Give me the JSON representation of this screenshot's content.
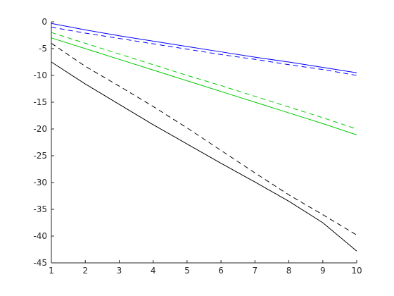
{
  "chart_data": {
    "type": "line",
    "title": "",
    "xlabel": "",
    "ylabel": "",
    "xlim": [
      1,
      10
    ],
    "ylim": [
      -45,
      0
    ],
    "grid": false,
    "legend": "none",
    "x_ticks": [
      1,
      2,
      3,
      4,
      5,
      6,
      7,
      8,
      9,
      10
    ],
    "y_ticks": [
      0,
      -5,
      -10,
      -15,
      -20,
      -25,
      -30,
      -35,
      -40,
      -45
    ],
    "x_tick_labels": [
      "1",
      "2",
      "3",
      "4",
      "5",
      "6",
      "7",
      "8",
      "9",
      "10"
    ],
    "y_tick_labels": [
      "0",
      "-5",
      "-10",
      "-15",
      "-20",
      "-25",
      "-30",
      "-35",
      "-40",
      "-45"
    ],
    "x": [
      1,
      2,
      3,
      4,
      5,
      6,
      7,
      8,
      9,
      10
    ],
    "series": [
      {
        "color": "#0000ff",
        "style": "solid",
        "values": [
          -0.3,
          -1.5,
          -2.6,
          -3.6,
          -4.6,
          -5.6,
          -6.6,
          -7.5,
          -8.5,
          -9.5
        ]
      },
      {
        "color": "#0000ff",
        "style": "dashed",
        "values": [
          -1.0,
          -2.1,
          -3.1,
          -4.1,
          -5.1,
          -6.1,
          -7.0,
          -8.0,
          -8.9,
          -10.0
        ]
      },
      {
        "color": "#00cc00",
        "style": "solid",
        "values": [
          -3.0,
          -5.0,
          -7.0,
          -9.0,
          -11.0,
          -13.0,
          -15.0,
          -17.0,
          -19.0,
          -21.1
        ]
      },
      {
        "color": "#00cc00",
        "style": "dashed",
        "values": [
          -2.0,
          -4.0,
          -6.0,
          -8.0,
          -10.0,
          -11.9,
          -13.9,
          -15.9,
          -17.9,
          -20.0
        ]
      },
      {
        "color": "#000000",
        "style": "solid",
        "values": [
          -7.5,
          -11.6,
          -15.4,
          -19.2,
          -22.8,
          -26.4,
          -29.9,
          -33.5,
          -37.5,
          -42.8
        ]
      },
      {
        "color": "#000000",
        "style": "dashed",
        "values": [
          -4.0,
          -8.3,
          -12.0,
          -15.8,
          -19.8,
          -24.0,
          -28.2,
          -32.3,
          -36.0,
          -39.8
        ]
      }
    ]
  }
}
